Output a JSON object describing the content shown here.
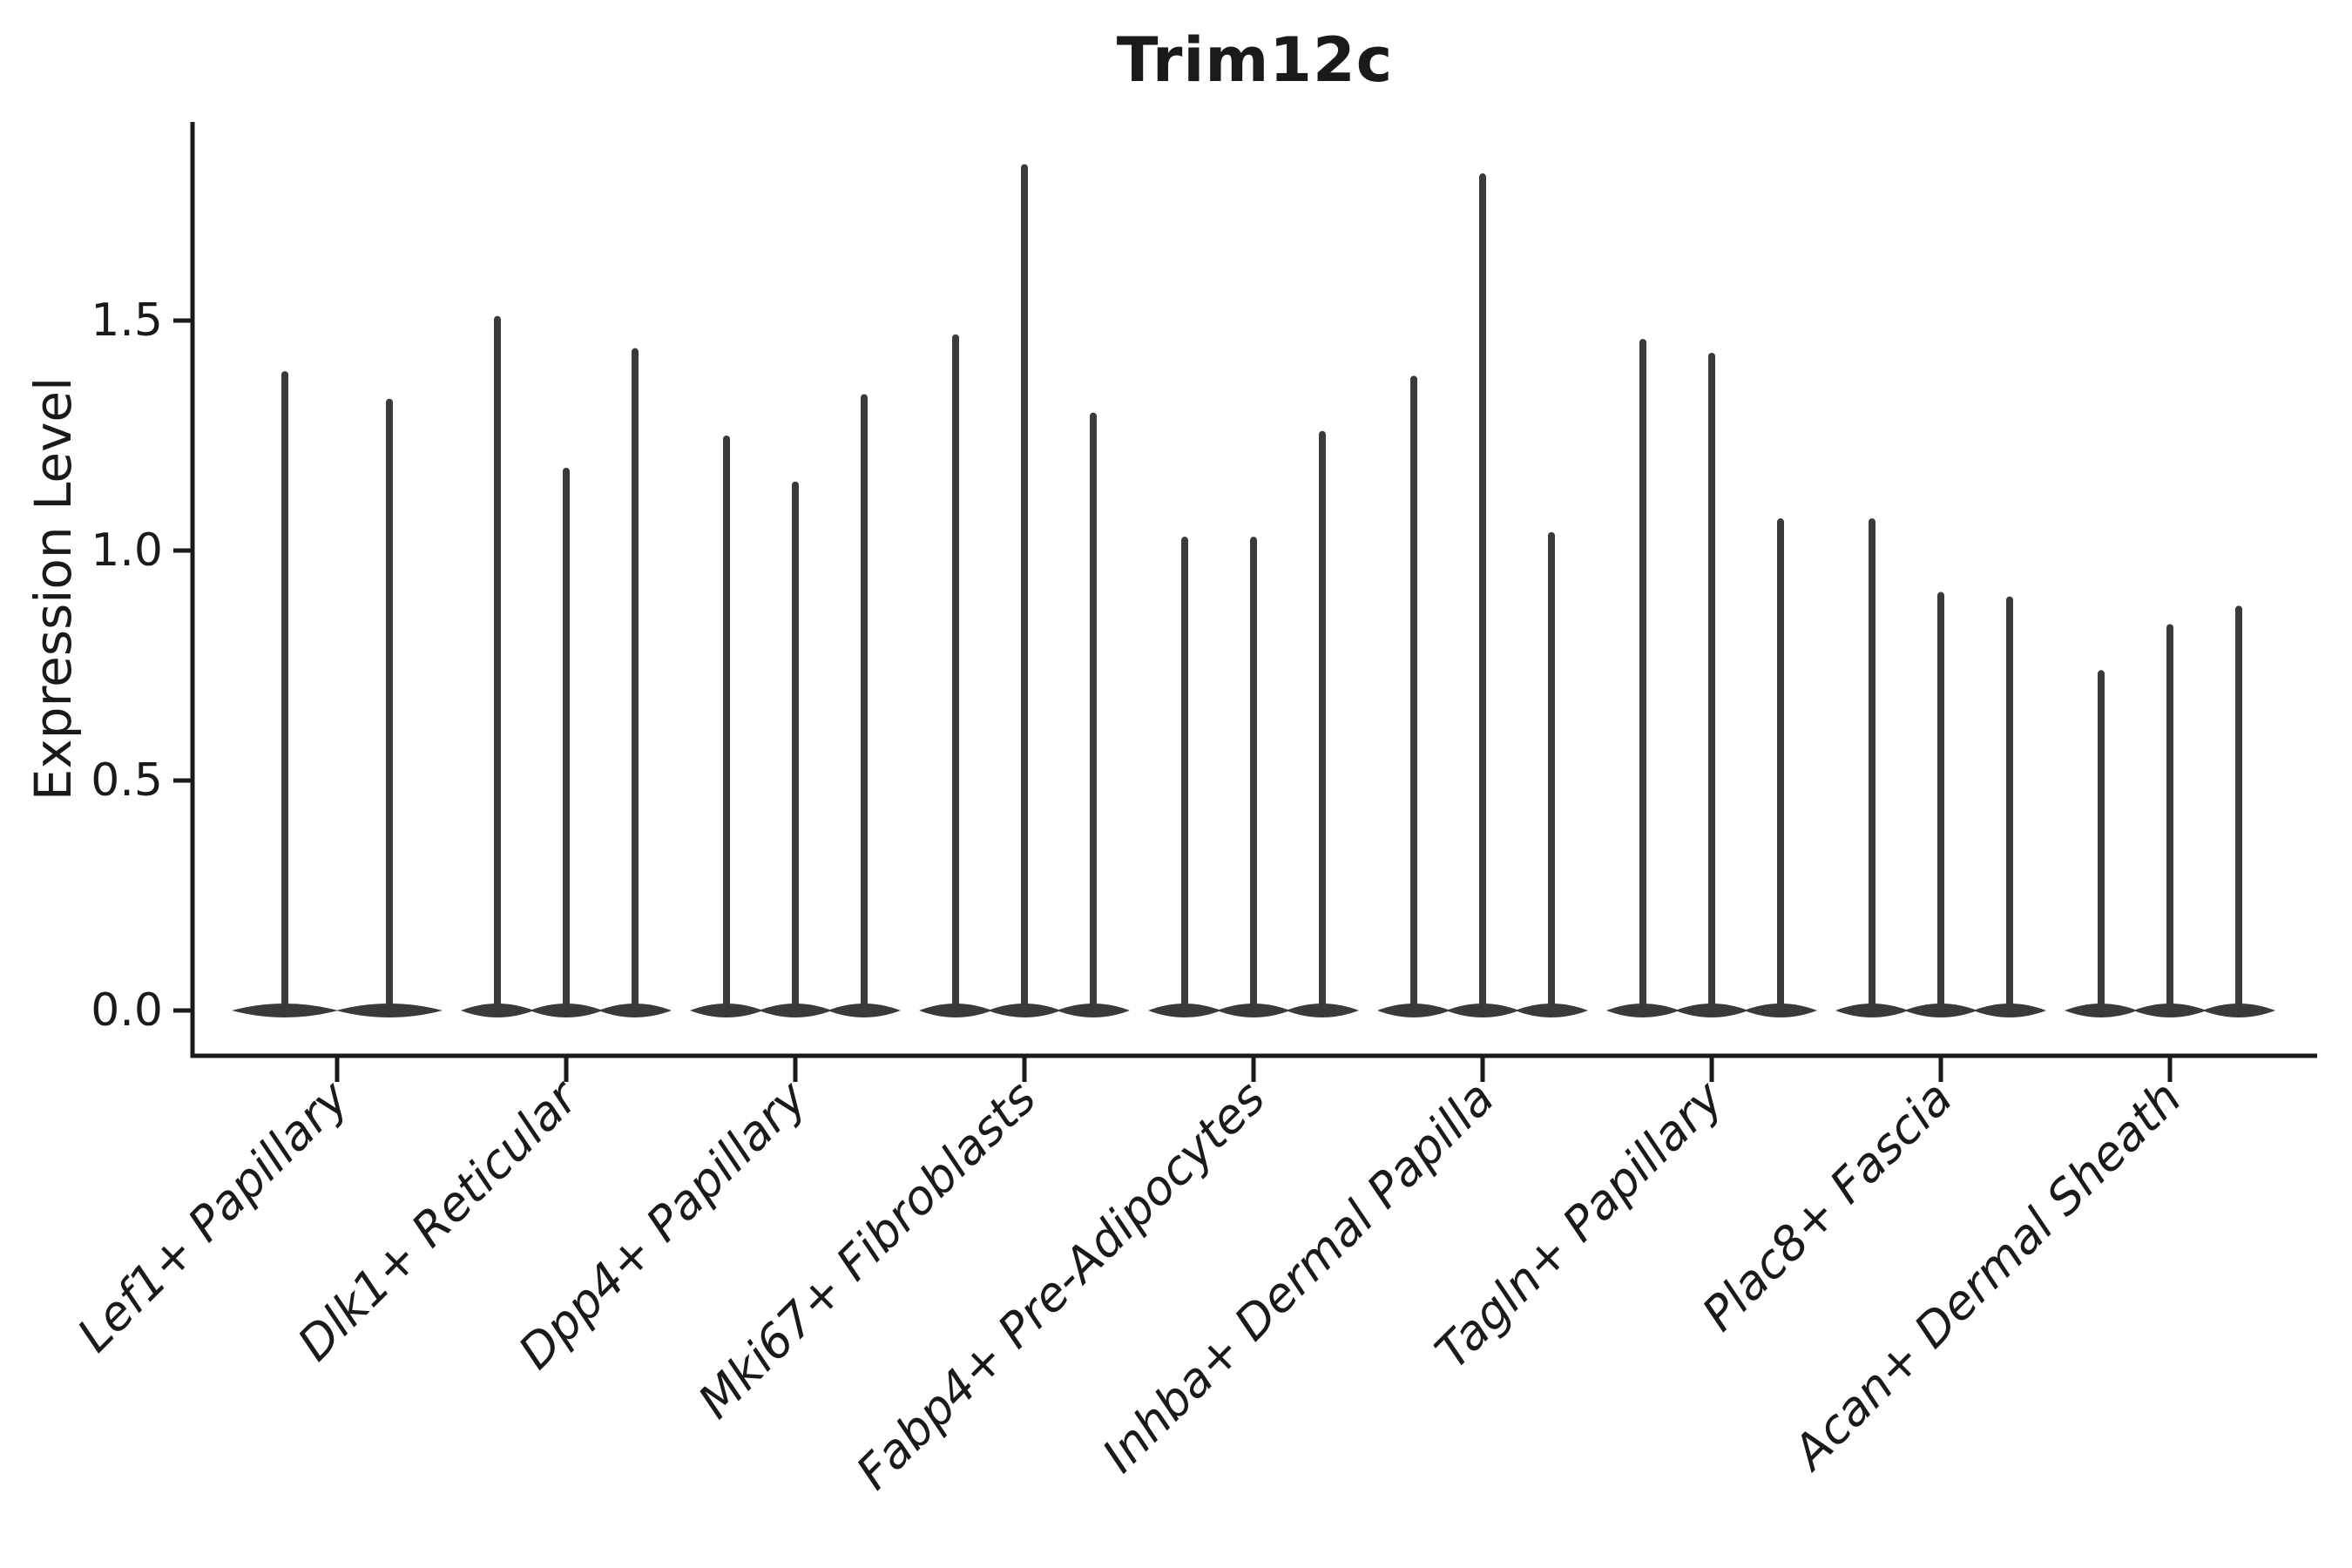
{
  "chart_data": {
    "type": "violin",
    "title": "Trim12c",
    "xlabel": "",
    "ylabel": "Expression Level",
    "ytick_labels": [
      "0.0",
      "0.5",
      "1.0",
      "1.5"
    ],
    "ytick_values": [
      0.0,
      0.5,
      1.0,
      1.5
    ],
    "ylim": [
      -0.1,
      1.93
    ],
    "grid": false,
    "legend": "none",
    "violin_shape": "density massed at 0 with a thin vertical tail up to each maximum",
    "categories": [
      "Lef1+ Papillary",
      "Dlk1+ Reticular",
      "Dpp4+ Papillary",
      "Mki67+ Fibroblasts",
      "Fabp4+ Pre-Adipocytes",
      "Inhba+ Dermal Papilla",
      "Tagln+ Papillary",
      "Plac8+ Fascia",
      "Acan+ Dermal Sheath"
    ],
    "groups": [
      {
        "label": "Lef1+ Papillary",
        "violin_maxima": [
          1.39,
          1.33
        ]
      },
      {
        "label": "Dlk1+ Reticular",
        "violin_maxima": [
          1.51,
          1.18,
          1.44
        ]
      },
      {
        "label": "Dpp4+ Papillary",
        "violin_maxima": [
          1.25,
          1.15,
          1.34
        ]
      },
      {
        "label": "Mki67+ Fibroblasts",
        "violin_maxima": [
          1.47,
          1.84,
          1.3
        ]
      },
      {
        "label": "Fabp4+ Pre-Adipocytes",
        "violin_maxima": [
          1.03,
          1.03,
          1.26
        ]
      },
      {
        "label": "Inhba+ Dermal Papilla",
        "violin_maxima": [
          1.38,
          1.82,
          1.04
        ]
      },
      {
        "label": "Tagln+ Papillary",
        "violin_maxima": [
          1.46,
          1.43,
          1.07
        ]
      },
      {
        "label": "Plac8+ Fascia",
        "violin_maxima": [
          1.07,
          0.91,
          0.9
        ]
      },
      {
        "label": "Acan+ Dermal Sheath",
        "violin_maxima": [
          0.74,
          0.84,
          0.88
        ]
      }
    ]
  },
  "colors": {
    "ink": "#1a1a1a",
    "violin": "#3a3a3a",
    "background": "#ffffff"
  }
}
